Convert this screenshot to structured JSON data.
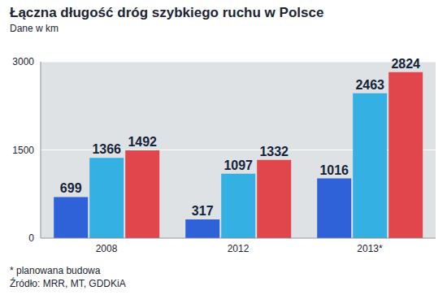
{
  "chart_data": {
    "type": "bar",
    "title": "Łączna długość dróg szybkiego ruchu w Polsce",
    "subtitle": "Dane w km",
    "annotations": [
      "* planowana budowa",
      "Źródło: MRR, MT, GDDKiA"
    ],
    "categories": [
      "2008",
      "2012",
      "2013*"
    ],
    "series": [
      {
        "color": "#2f62d8",
        "values": [
          699,
          317,
          1016
        ]
      },
      {
        "color": "#35b0e2",
        "values": [
          1366,
          1097,
          2463
        ]
      },
      {
        "color": "#e0464b",
        "values": [
          1492,
          1332,
          2824
        ]
      }
    ],
    "ylim": [
      0,
      3000
    ],
    "yticks": [
      0,
      1500,
      3000
    ],
    "grid": true,
    "data_labels": true
  }
}
